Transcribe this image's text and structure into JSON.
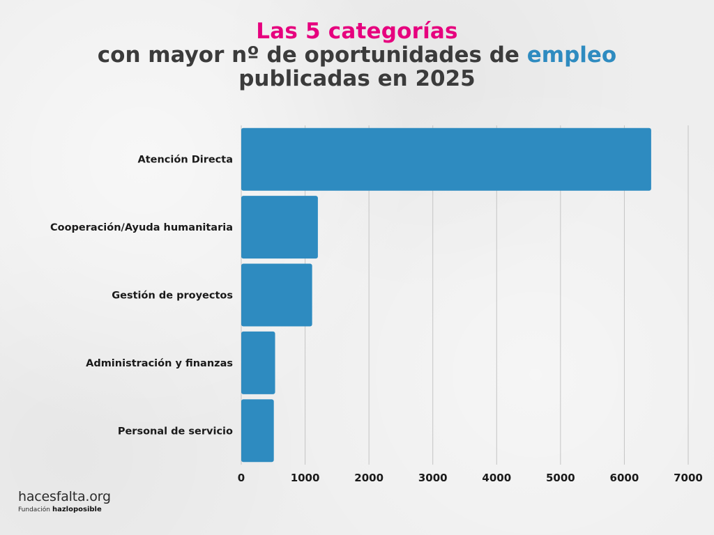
{
  "title": {
    "line1": "Las 5 categorías",
    "line2_prefix": "con mayor nº de oportunidades de ",
    "line2_accent": "empleo",
    "line3": "publicadas en 2025"
  },
  "footer": {
    "brand": "hacesfalta.org",
    "sub_label": "Fundación",
    "sub_logo": "hazloposible"
  },
  "colors": {
    "bar": "#2e8bc0",
    "title_accent_pink": "#e6007e",
    "title_accent_blue": "#2e8bc0",
    "text": "#1a1a1a",
    "grid": "#c4c4c4"
  },
  "chart_data": {
    "type": "bar",
    "orientation": "horizontal",
    "categories": [
      "Atención Directa",
      "Cooperación/Ayuda humanitaria",
      "Gestión de proyectos",
      "Administración y finanzas",
      "Personal de servicio"
    ],
    "values": [
      6420,
      1200,
      1110,
      530,
      510
    ],
    "xlim": [
      0,
      7000
    ],
    "xticks": [
      "0",
      "1000",
      "2000",
      "3000",
      "4000",
      "5000",
      "6000",
      "7000"
    ],
    "grid": true,
    "xlabel": "",
    "ylabel": ""
  }
}
